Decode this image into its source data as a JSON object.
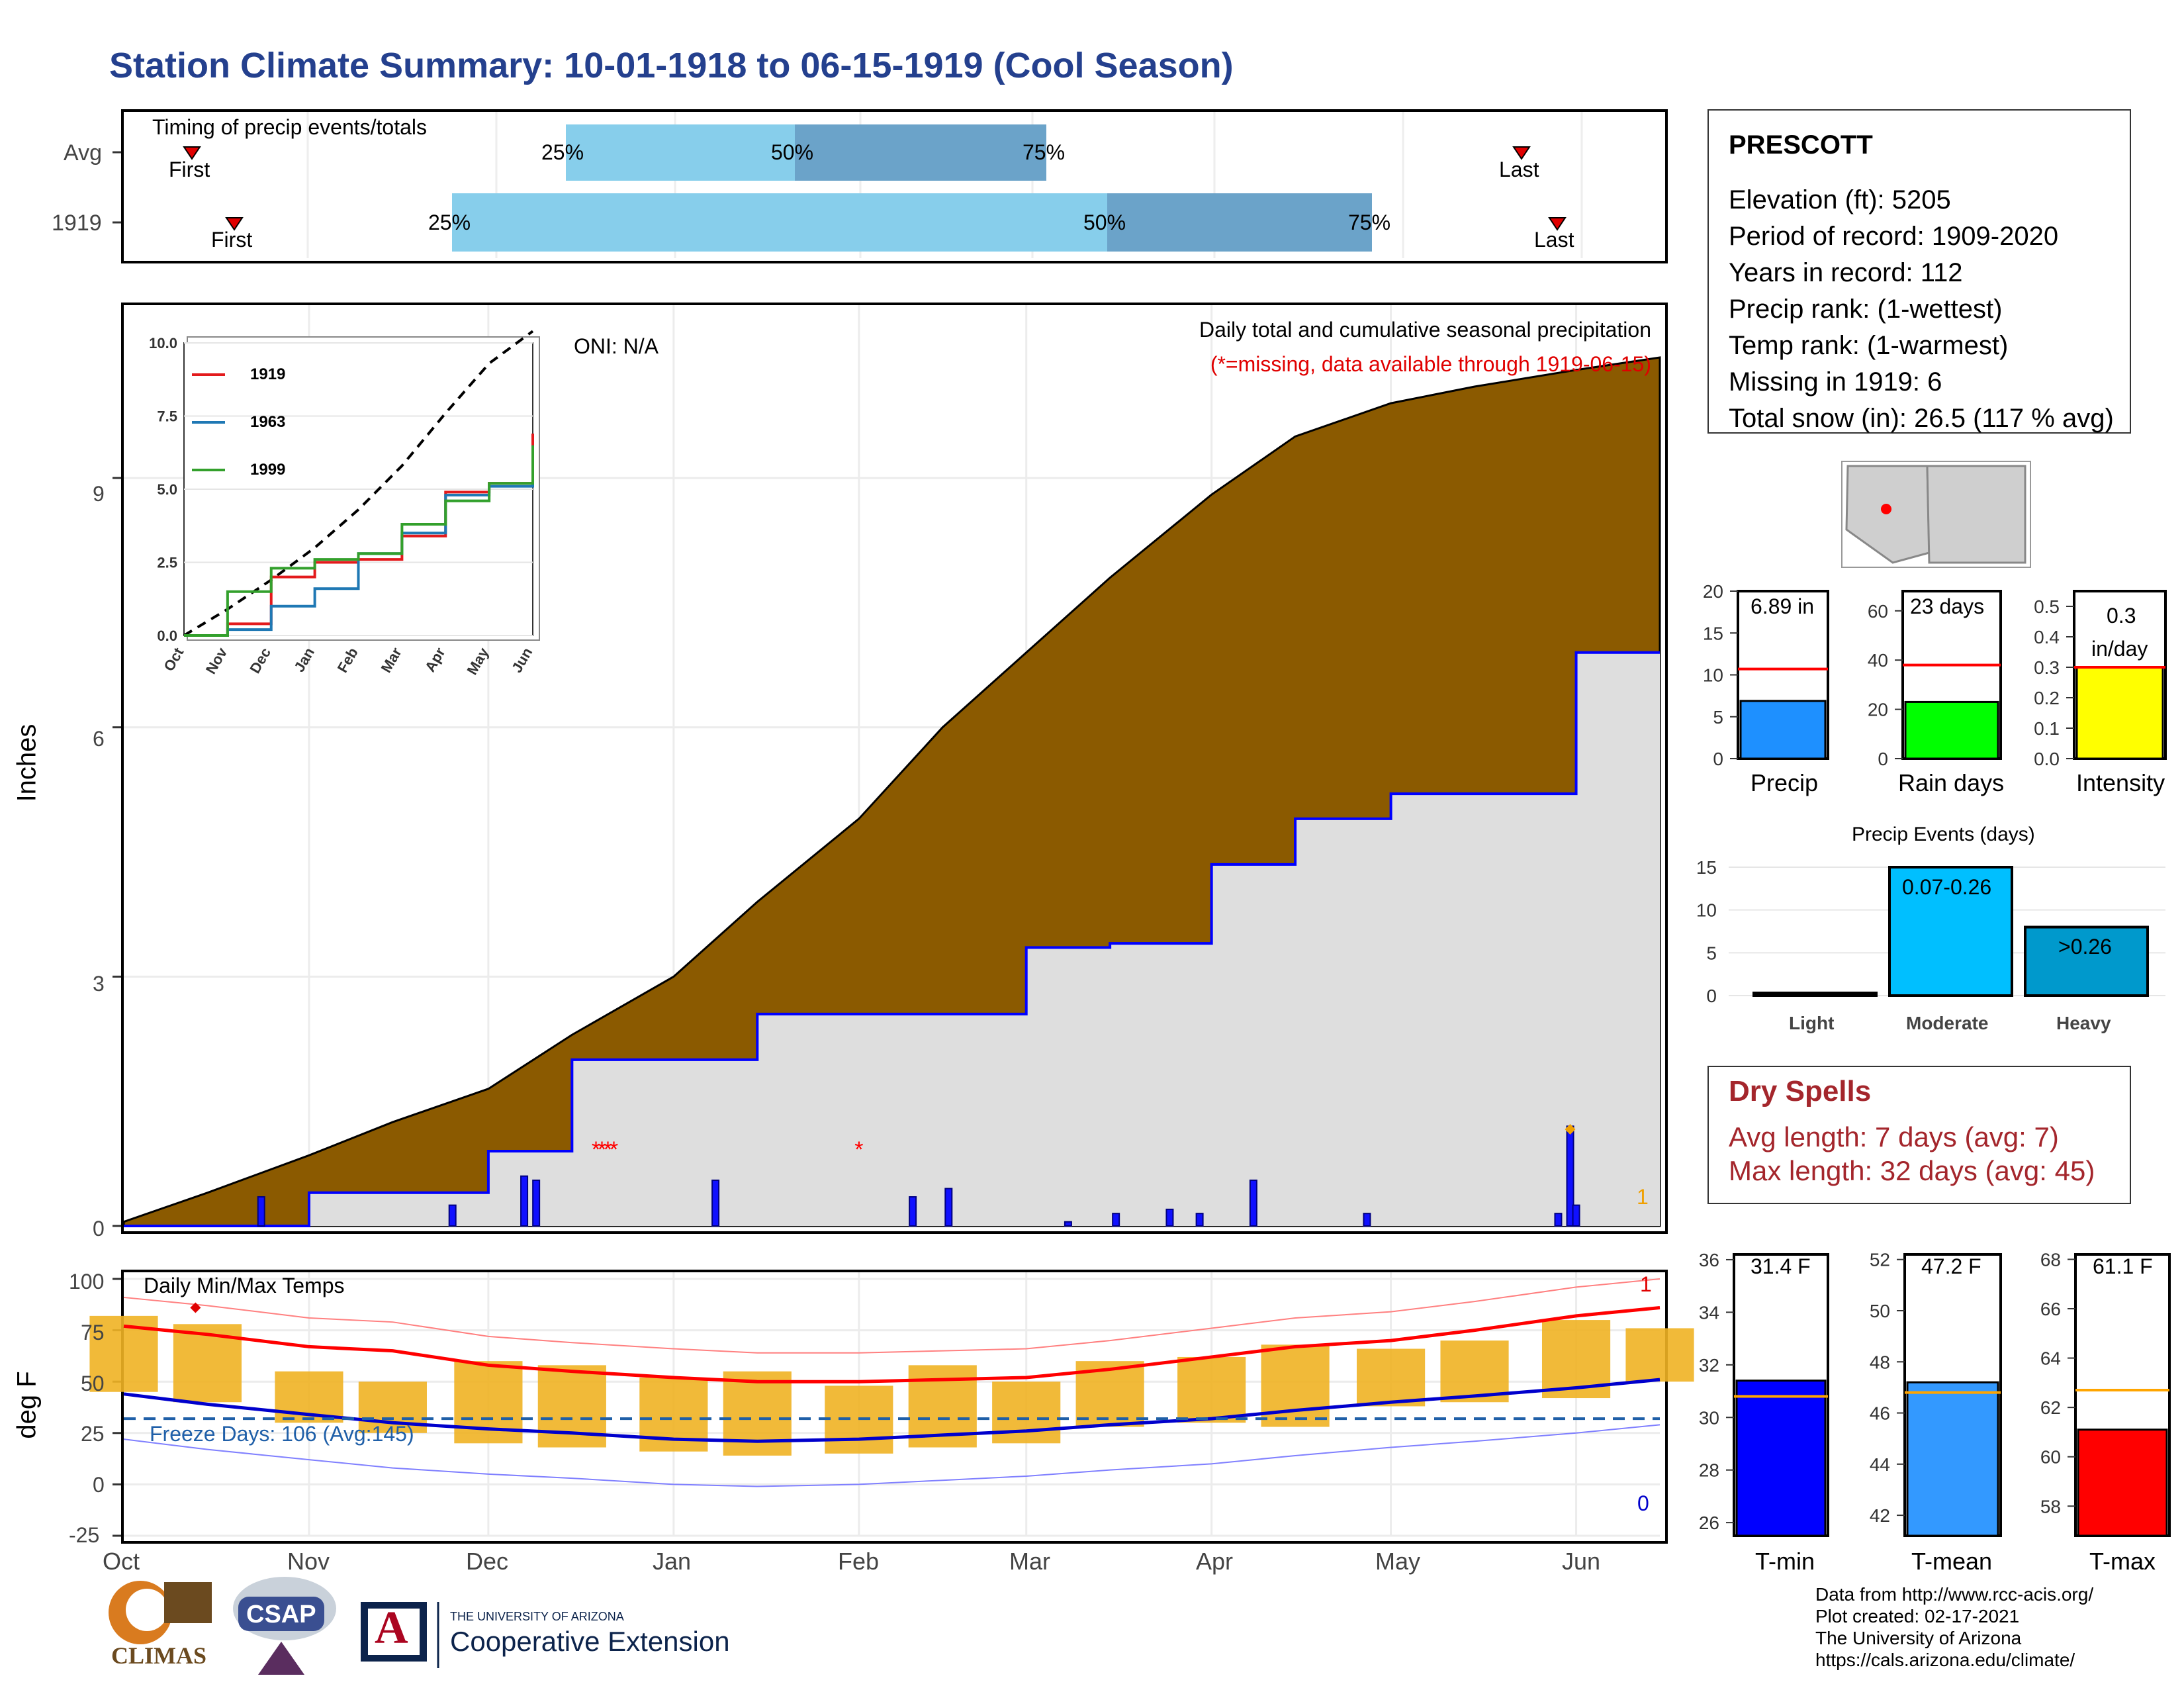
{
  "title": "Station Climate Summary: 10-01-1918 to 06-15-1919 (Cool Season)",
  "colors": {
    "title": "#24408e",
    "q_light": "#87ceeb",
    "q_dark": "#6ba3c9",
    "cum_avg_fill": "#8b5a00",
    "season_fill": "#dedede",
    "season_line": "#0000ff",
    "temp_bar": "#f0b323",
    "avg_tmax": "#ff0000",
    "avg_tmin": "#0000cc",
    "precip_bar": "#1e90ff",
    "rain_bar": "#00ff00",
    "intensity_bar": "#ffff00",
    "event_bar_mod": "#00bfff",
    "event_bar_heavy": "#0099cc",
    "dry_text": "#a4262c",
    "tmin_bar": "#0000ff",
    "tmean_bar": "#3399ff",
    "tmax_bar": "#ff0000",
    "avg_line": "#ffa500"
  },
  "timing": {
    "label": "Timing of precip events/totals",
    "rows": [
      {
        "name": "Avg",
        "first": "First",
        "last": "Last",
        "p25": "25%",
        "p50": "50%",
        "p75": "75%"
      },
      {
        "name": "1919",
        "first": "First",
        "last": "Last",
        "p25": "25%",
        "p50": "50%",
        "p75": "75%"
      }
    ]
  },
  "precip_panel": {
    "oni": "ONI: N/A",
    "caption": "Daily total and cumulative seasonal precipitation",
    "missing_note": "(*=missing, data available through 1919-06-15)",
    "ylabel": "Inches",
    "yticks": [
      "0",
      "3",
      "6",
      "9"
    ],
    "count_label": "1"
  },
  "inset": {
    "yticks": [
      "0.0",
      "2.5",
      "5.0",
      "7.5",
      "10.0"
    ],
    "xticks": [
      "Oct",
      "Nov",
      "Dec",
      "Jan",
      "Feb",
      "Mar",
      "Apr",
      "May",
      "Jun"
    ],
    "legend": [
      {
        "name": "1919",
        "color": "#e31a1c"
      },
      {
        "name": "1963",
        "color": "#1f78b4"
      },
      {
        "name": "1999",
        "color": "#33a02c"
      }
    ]
  },
  "temp_panel": {
    "label": "Daily Min/Max Temps",
    "freeze": "Freeze Days: 106 (Avg:145)",
    "ylabel": "deg F",
    "yticks": [
      "-25",
      "0",
      "25",
      "50",
      "75",
      "100"
    ],
    "count_high": "1",
    "count_low": "0"
  },
  "months": [
    "Oct",
    "Nov",
    "Dec",
    "Jan",
    "Feb",
    "Mar",
    "Apr",
    "May",
    "Jun"
  ],
  "station": {
    "name": "PRESCOTT",
    "lines": [
      "Elevation (ft): 5205",
      "Period of record: 1909-2020",
      "Years in record: 112",
      "Precip rank:  (1-wettest)",
      "Temp rank:  (1-warmest)",
      "Missing in 1919: 6",
      "Total snow (in): 26.5 (117 % avg)"
    ]
  },
  "mini_bars": [
    {
      "label": "Precip",
      "value_text": "6.89 in",
      "yticks": [
        "0",
        "5",
        "10",
        "15",
        "20"
      ],
      "value": 6.89,
      "avg": 10.7,
      "ymax": 20
    },
    {
      "label": "Rain days",
      "value_text": "23 days",
      "yticks": [
        "0",
        "20",
        "40",
        "60"
      ],
      "value": 23,
      "avg": 38,
      "ymax": 68
    },
    {
      "label": "Intensity",
      "value_text_1": "0.3",
      "value_text_2": "in/day",
      "yticks": [
        "0.0",
        "0.1",
        "0.2",
        "0.3",
        "0.4",
        "0.5"
      ],
      "value": 0.3,
      "avg": 0.3,
      "ymax": 0.55
    }
  ],
  "events": {
    "title": "Precip Events (days)",
    "yticks": [
      "0",
      "5",
      "10",
      "15"
    ],
    "bars": [
      {
        "label": "Light",
        "value": 0,
        "text": ""
      },
      {
        "label": "Moderate",
        "value": 15,
        "text": "0.07-0.26"
      },
      {
        "label": "Heavy",
        "value": 8,
        "text": ">0.26"
      }
    ]
  },
  "dry_spells": {
    "title": "Dry Spells",
    "avg_line": "Avg length: 7 days (avg: 7)",
    "max_line": "Max length: 32 days (avg: 45)"
  },
  "temp_bars": [
    {
      "label": "T-min",
      "value_text": "31.4 F",
      "value": 31.4,
      "avg": 30.8,
      "ymin": 25.5,
      "ymax": 36.2,
      "yticks": [
        "26",
        "28",
        "30",
        "32",
        "34",
        "36"
      ]
    },
    {
      "label": "T-mean",
      "value_text": "47.2 F",
      "value": 47.2,
      "avg": 46.8,
      "ymin": 41.2,
      "ymax": 52.2,
      "yticks": [
        "42",
        "44",
        "46",
        "48",
        "50",
        "52"
      ]
    },
    {
      "label": "T-max",
      "value_text": "61.1 F",
      "value": 61.1,
      "avg": 62.7,
      "ymin": 56.8,
      "ymax": 68.2,
      "yticks": [
        "58",
        "60",
        "62",
        "64",
        "66",
        "68"
      ]
    }
  ],
  "footer": [
    "Data from http://www.rcc-acis.org/",
    "Plot created: 02-17-2021",
    "The University of Arizona",
    "https://cals.arizona.edu/climate/"
  ],
  "logos": {
    "climas": "CLIMAS",
    "csap": "CSAP",
    "ua_small": "THE UNIVERSITY OF ARIZONA",
    "ua_big": "Cooperative Extension",
    "ua_mark": "A"
  },
  "chart_data": [
    {
      "type": "area",
      "title": "Daily total and cumulative seasonal precipitation",
      "ylabel": "Inches",
      "ylim": [
        0,
        11
      ],
      "x": [
        "1918-10-01",
        "1918-10-15",
        "1918-11-01",
        "1918-11-15",
        "1918-12-01",
        "1918-12-15",
        "1919-01-01",
        "1919-01-15",
        "1919-02-01",
        "1919-02-15",
        "1919-03-01",
        "1919-03-15",
        "1919-04-01",
        "1919-04-15",
        "1919-05-01",
        "1919-05-15",
        "1919-06-01",
        "1919-06-15"
      ],
      "series": [
        {
          "name": "",
          "values": [
            0.05,
            0.4,
            0.85,
            1.25,
            1.65,
            2.3,
            3.0,
            3.9,
            4.9,
            6.0,
            6.9,
            7.8,
            8.8,
            9.5,
            9.9,
            10.1,
            10.3,
            10.45
          ]
        },
        {
          "name": "",
          "values": [
            0,
            0,
            0.4,
            0.4,
            0.9,
            2.0,
            2.0,
            2.55,
            2.55,
            2.55,
            3.35,
            3.4,
            4.35,
            4.9,
            5.2,
            5.2,
            6.9,
            6.9
          ]
        }
      ]
    },
    {
      "type": "line",
      "ylim": [
        0,
        10
      ],
      "x": [
        "Oct",
        "Nov",
        "Dec",
        "Jan",
        "Feb",
        "Mar",
        "Apr",
        "May",
        "Jun"
      ],
      "series": [
        {
          "name": "",
          "values": [
            0,
            0.9,
            1.9,
            3.0,
            4.3,
            5.8,
            7.6,
            9.3,
            10.4
          ]
        },
        {
          "name": "1919",
          "values": [
            0,
            0.4,
            2.0,
            2.5,
            2.6,
            3.4,
            4.9,
            5.2,
            6.9
          ]
        },
        {
          "name": "1963",
          "values": [
            0,
            0.2,
            1.0,
            1.6,
            2.8,
            3.5,
            4.8,
            5.1,
            6.5
          ]
        },
        {
          "name": "1999",
          "values": [
            0,
            1.5,
            2.3,
            2.6,
            2.8,
            3.8,
            4.6,
            5.2,
            6.5
          ]
        }
      ]
    },
    {
      "type": "bar",
      "title": "Daily Min/Max Temps",
      "ylabel": "deg F",
      "ylim": [
        -25,
        100
      ],
      "x": [
        "1918-10-01",
        "1918-10-15",
        "1918-11-01",
        "1918-11-15",
        "1918-12-01",
        "1918-12-15",
        "1919-01-01",
        "1919-01-15",
        "1919-02-01",
        "1919-02-15",
        "1919-03-01",
        "1919-03-15",
        "1919-04-01",
        "1919-04-15",
        "1919-05-01",
        "1919-05-15",
        "1919-06-01",
        "1919-06-15"
      ],
      "series": [
        {
          "name": "",
          "values": [
            77,
            73,
            67,
            65,
            58,
            55,
            52,
            50,
            50,
            51,
            52,
            56,
            62,
            67,
            70,
            75,
            82,
            86
          ]
        },
        {
          "name": "",
          "values": [
            44,
            39,
            34,
            30,
            27,
            25,
            22,
            21,
            22,
            24,
            26,
            29,
            32,
            36,
            40,
            43,
            47,
            51
          ]
        },
        {
          "name": "",
          "values": [
            82,
            78,
            55,
            50,
            60,
            58,
            52,
            55,
            48,
            58,
            50,
            60,
            62,
            68,
            66,
            70,
            80,
            76
          ]
        },
        {
          "name": "",
          "values": [
            45,
            40,
            30,
            25,
            20,
            18,
            16,
            14,
            15,
            18,
            20,
            28,
            30,
            28,
            38,
            40,
            42,
            50
          ]
        }
      ]
    },
    {
      "type": "bar",
      "title": "Precip Events (days)",
      "categories": [
        "Light",
        "Moderate",
        "Heavy"
      ],
      "values": [
        0,
        15,
        8
      ],
      "ylim": [
        0,
        15
      ]
    },
    {
      "type": "bar",
      "categories": [
        "Precip",
        "Rain days",
        "Intensity"
      ],
      "values": [
        6.89,
        23,
        0.3
      ]
    },
    {
      "type": "bar",
      "categories": [
        "T-min",
        "T-mean",
        "T-max"
      ],
      "values": [
        31.4,
        47.2,
        61.1
      ]
    }
  ]
}
